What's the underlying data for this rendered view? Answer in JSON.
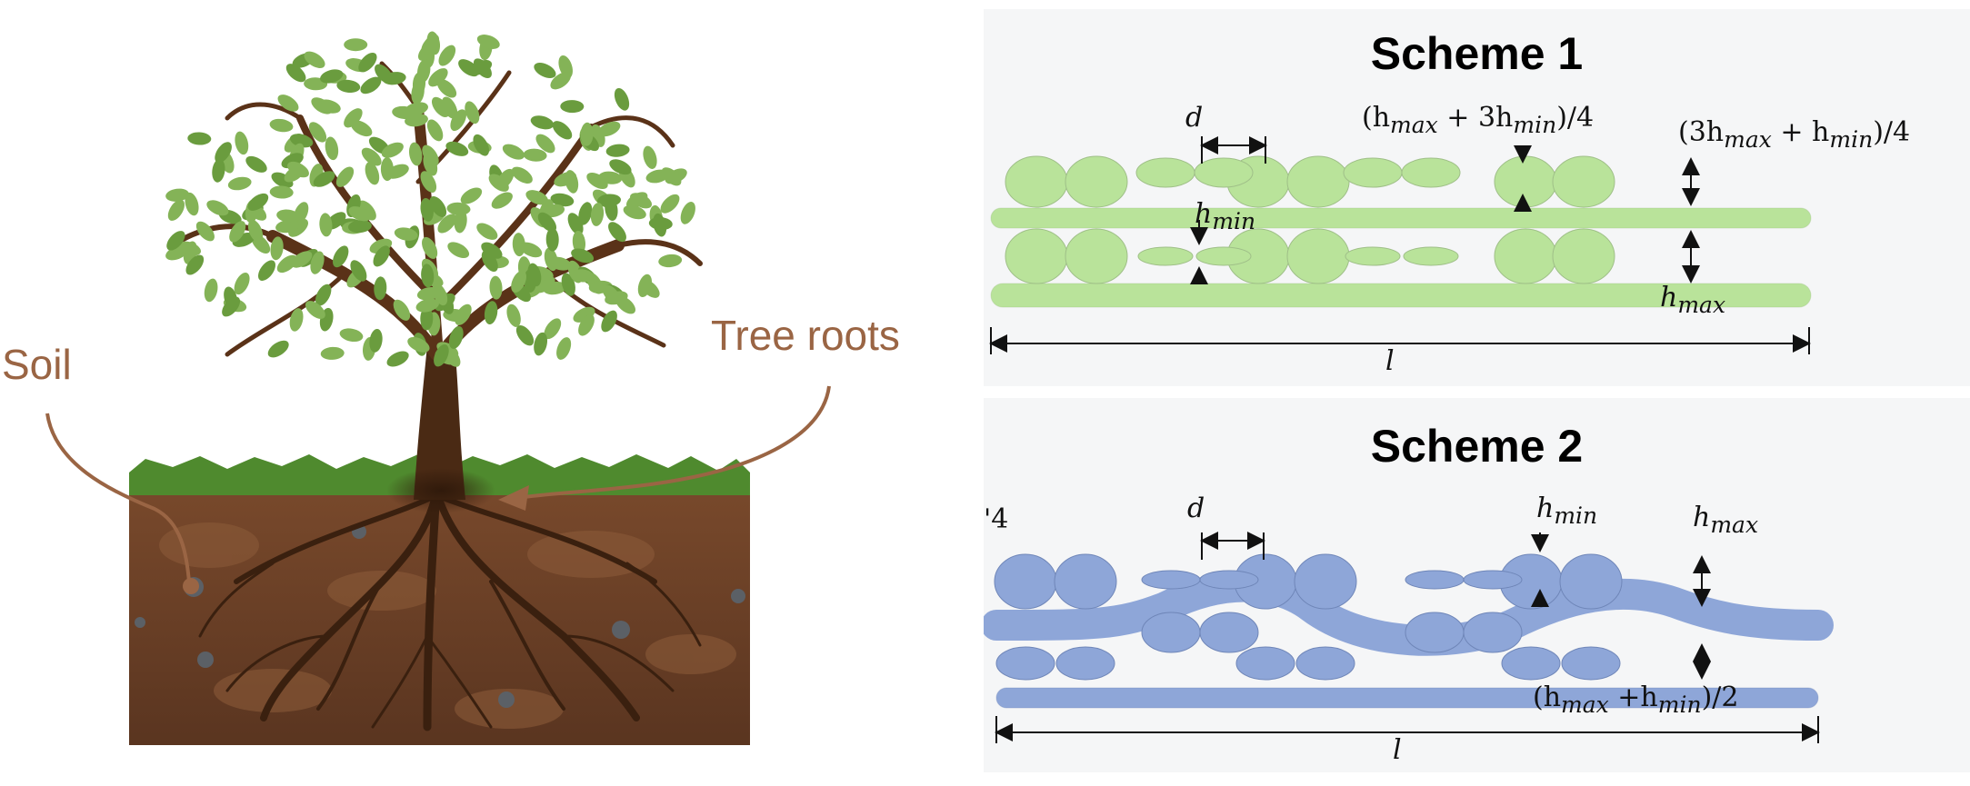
{
  "left_panel": {
    "soil_label": "Soil",
    "roots_label": "Tree roots",
    "colors": {
      "soil": "#6b3f26",
      "grass": "#4f8a2e",
      "leaf": "#7aab4b",
      "trunk": "#4a2a14",
      "callout": "#9a6544"
    }
  },
  "scheme1": {
    "title": "Scheme 1",
    "d_label": "d",
    "top_label_1": "(h",
    "top_label_1_sub": "max",
    "top_label_1_mid": " + 3h",
    "top_label_1_sub2": "min",
    "top_label_1_end": ")/4",
    "top_label_2": "(3h",
    "top_label_2_sub": "max",
    "top_label_2_mid": " + h",
    "top_label_2_sub2": "min",
    "top_label_2_end": ")/4",
    "hmin_label": "h",
    "hmin_sub": "min",
    "hmax_label": "h",
    "hmax_sub": "max",
    "l_label": "l",
    "color": "#b9e39a"
  },
  "scheme2": {
    "title": "Scheme 2",
    "edge_label": "'4",
    "d_label": "d",
    "hmin_label": "h",
    "hmin_sub": "min",
    "hmax_label": "h",
    "hmax_sub": "max",
    "avg_label": "(h",
    "avg_sub": "max",
    "avg_mid": " +h",
    "avg_sub2": "min",
    "avg_end": ")/2",
    "l_label": "l",
    "color": "#8ea6d8"
  }
}
